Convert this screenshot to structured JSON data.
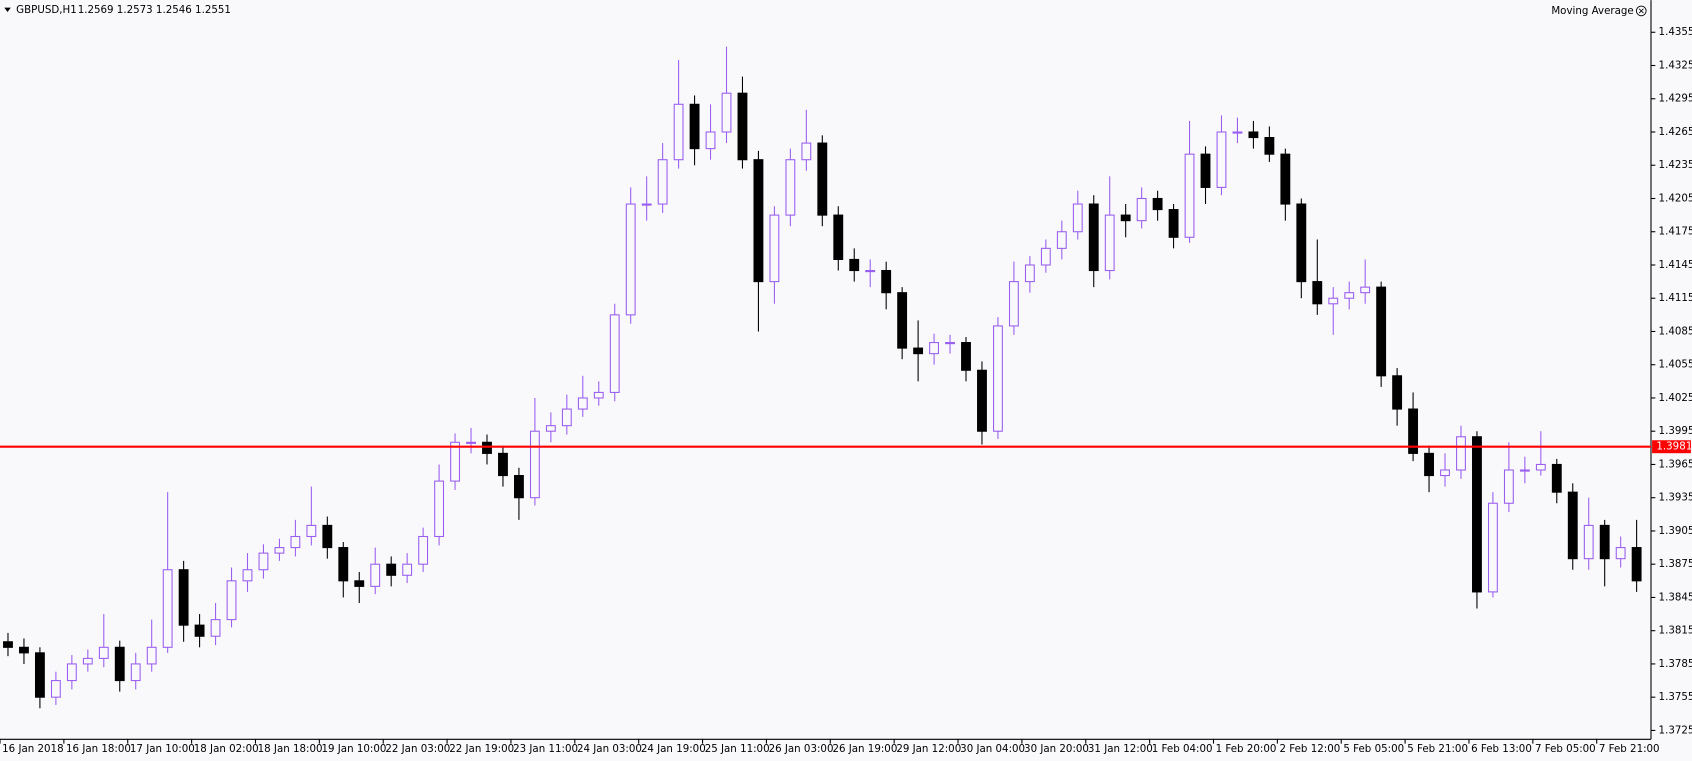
{
  "chart_data": {
    "type": "candlestick",
    "title": "GBPUSD,H1",
    "quote": "1.2569 1.2573 1.2546 1.2551",
    "indicator": "Moving Average",
    "bull_color": "#9a5ff0",
    "bear_color": "#000000",
    "price_line": 1.3981,
    "price_line_color": "#ff0000",
    "open": [
      1.3805,
      1.38,
      1.3795,
      1.3755,
      1.377,
      1.3785,
      1.379,
      1.38,
      1.377,
      1.3785,
      1.38,
      1.387,
      1.382,
      1.381,
      1.3825,
      1.386,
      1.387,
      1.3885,
      1.389,
      1.39,
      1.391,
      1.389,
      1.386,
      1.3855,
      1.3875,
      1.3865,
      1.3875,
      1.39,
      1.395,
      1.3985,
      1.3985,
      1.3975,
      1.3955,
      1.3935,
      1.3995,
      1.4,
      1.4015,
      1.4025,
      1.403,
      1.41,
      1.42,
      1.42,
      1.424,
      1.429,
      1.425,
      1.4265,
      1.43,
      1.424,
      1.413,
      1.419,
      1.424,
      1.4255,
      1.419,
      1.415,
      1.414,
      1.414,
      1.412,
      1.407,
      1.4065,
      1.4075,
      1.4075,
      1.405,
      1.3995,
      1.409,
      1.413,
      1.4145,
      1.416,
      1.4175,
      1.42,
      1.414,
      1.419,
      1.4185,
      1.4205,
      1.4195,
      1.417,
      1.4245,
      1.4215,
      1.4265,
      1.4265,
      1.426,
      1.4245,
      1.42,
      1.413,
      1.411,
      1.4115,
      1.412,
      1.4125,
      1.4045,
      1.4015,
      1.3975,
      1.3955,
      1.396,
      1.399,
      1.385,
      1.393,
      1.396,
      1.396,
      1.3965,
      1.394,
      1.388,
      1.391,
      1.388,
      1.389
    ],
    "high": [
      1.3813,
      1.3808,
      1.38,
      1.3778,
      1.3793,
      1.3798,
      1.383,
      1.3806,
      1.3795,
      1.3825,
      1.394,
      1.3878,
      1.383,
      1.384,
      1.3872,
      1.3885,
      1.3893,
      1.3898,
      1.3915,
      1.3945,
      1.3918,
      1.3895,
      1.3868,
      1.389,
      1.3882,
      1.3885,
      1.3908,
      1.3965,
      1.3993,
      1.3998,
      1.3992,
      1.3982,
      1.3962,
      1.4025,
      1.4012,
      1.4028,
      1.4045,
      1.404,
      1.411,
      1.4215,
      1.4225,
      1.4255,
      1.433,
      1.4298,
      1.429,
      1.4342,
      1.4315,
      1.4248,
      1.4198,
      1.425,
      1.4285,
      1.4262,
      1.4198,
      1.416,
      1.415,
      1.4148,
      1.4125,
      1.4095,
      1.4083,
      1.4082,
      1.408,
      1.4058,
      1.4098,
      1.4148,
      1.4153,
      1.4168,
      1.4185,
      1.4212,
      1.4208,
      1.4225,
      1.42,
      1.4215,
      1.4212,
      1.42,
      1.4275,
      1.4252,
      1.428,
      1.4278,
      1.4275,
      1.427,
      1.425,
      1.4205,
      1.4168,
      1.4125,
      1.413,
      1.415,
      1.413,
      1.4052,
      1.403,
      1.3982,
      1.3975,
      1.4,
      1.3995,
      1.394,
      1.3985,
      1.3972,
      1.3995,
      1.397,
      1.3948,
      1.3935,
      1.3915,
      1.39,
      1.3915
    ],
    "low": [
      1.3792,
      1.3785,
      1.3745,
      1.3748,
      1.3762,
      1.3778,
      1.3782,
      1.376,
      1.3762,
      1.3778,
      1.3795,
      1.3805,
      1.38,
      1.3802,
      1.3818,
      1.385,
      1.3862,
      1.3878,
      1.3882,
      1.3892,
      1.388,
      1.3845,
      1.384,
      1.3848,
      1.3855,
      1.3858,
      1.3868,
      1.3892,
      1.3942,
      1.3975,
      1.3965,
      1.3945,
      1.3915,
      1.3928,
      1.3985,
      1.3992,
      1.4008,
      1.4018,
      1.4022,
      1.4092,
      1.4185,
      1.4192,
      1.4232,
      1.4235,
      1.424,
      1.4255,
      1.4232,
      1.4085,
      1.411,
      1.418,
      1.423,
      1.418,
      1.414,
      1.413,
      1.4125,
      1.4105,
      1.406,
      1.404,
      1.4055,
      1.4065,
      1.404,
      1.3983,
      1.3988,
      1.4082,
      1.412,
      1.4138,
      1.415,
      1.4168,
      1.4125,
      1.4132,
      1.417,
      1.4178,
      1.4185,
      1.416,
      1.4165,
      1.42,
      1.4208,
      1.4255,
      1.425,
      1.4238,
      1.4185,
      1.4115,
      1.41,
      1.4082,
      1.4105,
      1.411,
      1.4035,
      1.4,
      1.3968,
      1.394,
      1.3945,
      1.3952,
      1.3835,
      1.3845,
      1.3922,
      1.3948,
      1.3955,
      1.393,
      1.387,
      1.387,
      1.3855,
      1.3872,
      1.385
    ],
    "close": [
      1.38,
      1.3795,
      1.3755,
      1.377,
      1.3785,
      1.379,
      1.38,
      1.377,
      1.3785,
      1.38,
      1.387,
      1.382,
      1.381,
      1.3825,
      1.386,
      1.387,
      1.3885,
      1.389,
      1.39,
      1.391,
      1.389,
      1.386,
      1.3855,
      1.3875,
      1.3865,
      1.3875,
      1.39,
      1.395,
      1.3985,
      1.3985,
      1.3975,
      1.3955,
      1.3935,
      1.3995,
      1.4,
      1.4015,
      1.4025,
      1.403,
      1.41,
      1.42,
      1.42,
      1.424,
      1.429,
      1.425,
      1.4265,
      1.43,
      1.424,
      1.413,
      1.419,
      1.424,
      1.4255,
      1.419,
      1.415,
      1.414,
      1.414,
      1.412,
      1.407,
      1.4065,
      1.4075,
      1.4075,
      1.405,
      1.3995,
      1.409,
      1.413,
      1.4145,
      1.416,
      1.4175,
      1.42,
      1.414,
      1.419,
      1.4185,
      1.4205,
      1.4195,
      1.417,
      1.4245,
      1.4215,
      1.4265,
      1.4265,
      1.426,
      1.4245,
      1.42,
      1.413,
      1.411,
      1.4115,
      1.412,
      1.4125,
      1.4045,
      1.4015,
      1.3975,
      1.3955,
      1.396,
      1.399,
      1.385,
      1.393,
      1.396,
      1.396,
      1.3965,
      1.394,
      1.388,
      1.391,
      1.388,
      1.389,
      1.386
    ],
    "xlim": [
      0,
      103.4
    ],
    "xticks": [
      {
        "value": 0,
        "label": "16 Jan 2018"
      },
      {
        "value": 4,
        "label": "16 Jan 18:00"
      },
      {
        "value": 8,
        "label": "17 Jan 10:00"
      },
      {
        "value": 12,
        "label": "18 Jan 02:00"
      },
      {
        "value": 16,
        "label": "18 Jan 18:00"
      },
      {
        "value": 20,
        "label": "19 Jan 10:00"
      },
      {
        "value": 24,
        "label": "22 Jan 03:00"
      },
      {
        "value": 28,
        "label": "22 Jan 19:00"
      },
      {
        "value": 32,
        "label": "23 Jan 11:00"
      },
      {
        "value": 36,
        "label": "24 Jan 03:00"
      },
      {
        "value": 40,
        "label": "24 Jan 19:00"
      },
      {
        "value": 44,
        "label": "25 Jan 11:00"
      },
      {
        "value": 48,
        "label": "26 Jan 03:00"
      },
      {
        "value": 52,
        "label": "26 Jan 19:00"
      },
      {
        "value": 56,
        "label": "29 Jan 12:00"
      },
      {
        "value": 60,
        "label": "30 Jan 04:00"
      },
      {
        "value": 64,
        "label": "30 Jan 20:00"
      },
      {
        "value": 68,
        "label": "31 Jan 12:00"
      },
      {
        "value": 72,
        "label": "1 Feb 04:00"
      },
      {
        "value": 76,
        "label": "1 Feb 20:00"
      },
      {
        "value": 80,
        "label": "2 Feb 12:00"
      },
      {
        "value": 84,
        "label": "5 Feb 05:00"
      },
      {
        "value": 88,
        "label": "5 Feb 21:00"
      },
      {
        "value": 92,
        "label": "6 Feb 13:00"
      },
      {
        "value": 96,
        "label": "7 Feb 05:00"
      },
      {
        "value": 100,
        "label": "7 Feb 21:00"
      }
    ],
    "ylim": [
      1.3717,
      1.4384
    ],
    "yticks": [
      1.4355,
      1.4325,
      1.4295,
      1.4265,
      1.4235,
      1.4205,
      1.4175,
      1.4145,
      1.4115,
      1.4085,
      1.4055,
      1.4025,
      1.3995,
      1.3965,
      1.3935,
      1.3905,
      1.3875,
      1.3845,
      1.3815,
      1.3785,
      1.3755,
      1.3725
    ],
    "grid": false
  }
}
